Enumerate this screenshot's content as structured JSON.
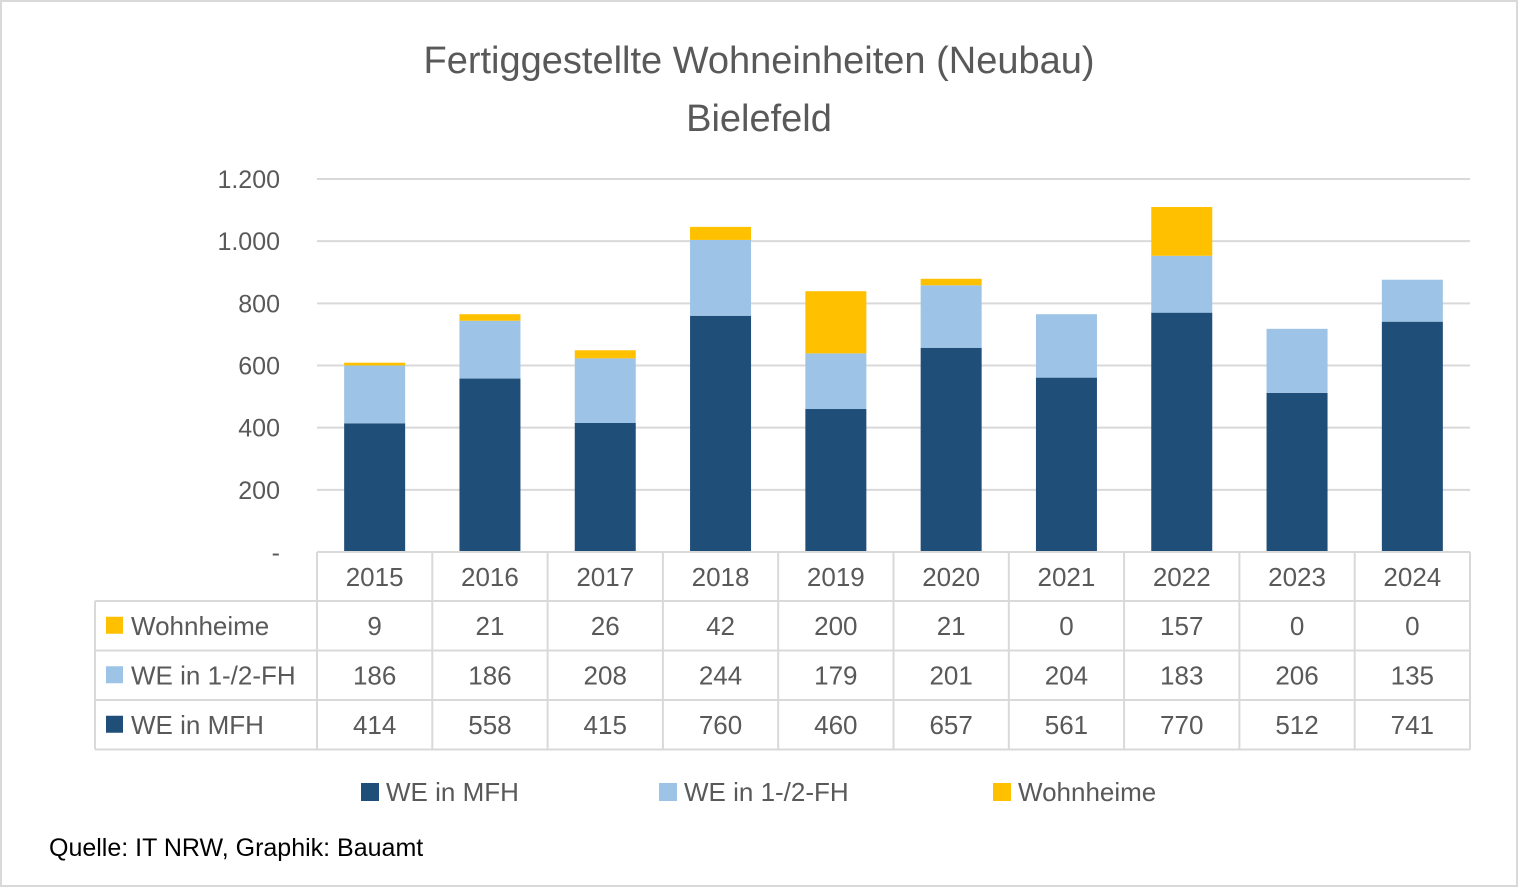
{
  "chart_data": {
    "type": "bar",
    "stacked": true,
    "title": "Fertiggestellte Wohneinheiten (Neubau)",
    "subtitle": "Bielefeld",
    "xlabel": "",
    "ylabel": "",
    "ylim": [
      0,
      1200
    ],
    "yticks": [
      0,
      200,
      400,
      600,
      800,
      1000,
      1200
    ],
    "ytick_labels": [
      "-",
      "200",
      "400",
      "600",
      "800",
      "1.000",
      "1.200"
    ],
    "grid": true,
    "categories": [
      "2015",
      "2016",
      "2017",
      "2018",
      "2019",
      "2020",
      "2021",
      "2022",
      "2023",
      "2024"
    ],
    "series": [
      {
        "name": "WE in MFH",
        "color": "#1f4e79",
        "values": [
          414,
          558,
          415,
          760,
          460,
          657,
          561,
          770,
          512,
          741
        ]
      },
      {
        "name": "WE in 1-/2-FH",
        "color": "#9dc3e6",
        "values": [
          186,
          186,
          208,
          244,
          179,
          201,
          204,
          183,
          206,
          135
        ]
      },
      {
        "name": "Wohnheime",
        "color": "#ffc000",
        "values": [
          9,
          21,
          26,
          42,
          200,
          21,
          0,
          157,
          0,
          0
        ]
      }
    ],
    "data_table": {
      "row_order": [
        "Wohnheime",
        "WE in 1-/2-FH",
        "WE in MFH"
      ]
    },
    "legend": {
      "position": "bottom",
      "entries": [
        "WE in MFH",
        "WE in 1-/2-FH",
        "Wohnheime"
      ]
    },
    "source": "Quelle: IT NRW, Graphik: Bauamt"
  }
}
